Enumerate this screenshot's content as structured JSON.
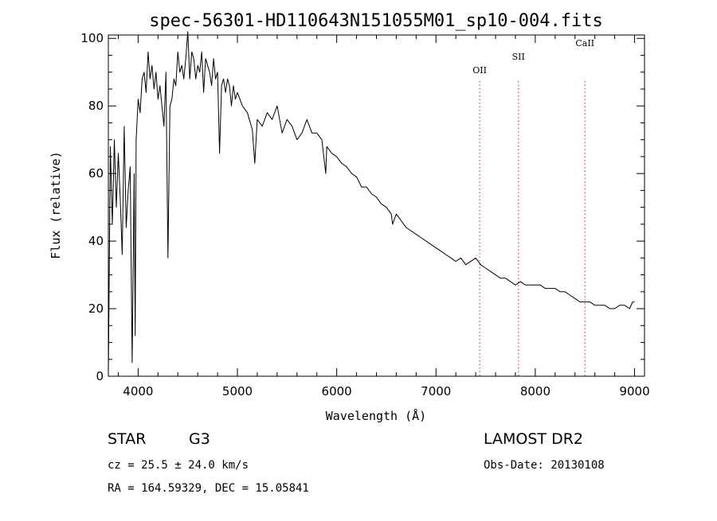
{
  "chart_data": {
    "type": "line",
    "title": "spec-56301-HD110643N151055M01_sp10-004.fits",
    "xlabel": "Wavelength (Å)",
    "ylabel": "Flux (relative)",
    "xlim": [
      3700,
      9100
    ],
    "ylim": [
      0,
      101
    ],
    "x_ticks": [
      4000,
      5000,
      6000,
      7000,
      8000,
      9000
    ],
    "y_ticks": [
      0,
      20,
      40,
      60,
      80,
      100
    ],
    "grid": false,
    "line_color": "#000000",
    "marker_color": "#ff3b3b",
    "spectral_lines": [
      {
        "label": "OII",
        "wavelength": 7440
      },
      {
        "label": "SII",
        "wavelength": 7830
      },
      {
        "label": "CaII",
        "wavelength": 8500
      }
    ],
    "series": [
      {
        "x": [
          3700,
          3720,
          3740,
          3760,
          3780,
          3800,
          3820,
          3840,
          3860,
          3880,
          3900,
          3920,
          3940,
          3960,
          3970,
          3980,
          4000,
          4020,
          4040,
          4060,
          4080,
          4100,
          4120,
          4140,
          4160,
          4180,
          4200,
          4220,
          4240,
          4260,
          4280,
          4300,
          4320,
          4340,
          4360,
          4380,
          4400,
          4420,
          4440,
          4460,
          4480,
          4500,
          4520,
          4540,
          4560,
          4580,
          4600,
          4620,
          4640,
          4660,
          4680,
          4700,
          4720,
          4740,
          4760,
          4780,
          4800,
          4820,
          4840,
          4860,
          4880,
          4900,
          4920,
          4940,
          4960,
          4980,
          5000,
          5050,
          5100,
          5150,
          5175,
          5200,
          5250,
          5300,
          5350,
          5400,
          5450,
          5500,
          5550,
          5600,
          5650,
          5700,
          5750,
          5800,
          5850,
          5890,
          5900,
          5950,
          6000,
          6050,
          6100,
          6150,
          6200,
          6250,
          6300,
          6350,
          6400,
          6450,
          6500,
          6550,
          6563,
          6600,
          6650,
          6700,
          6750,
          6800,
          6850,
          6900,
          6950,
          7000,
          7050,
          7100,
          7150,
          7200,
          7250,
          7300,
          7350,
          7400,
          7450,
          7500,
          7550,
          7600,
          7650,
          7700,
          7750,
          7800,
          7850,
          7900,
          7950,
          8000,
          8050,
          8100,
          8150,
          8200,
          8250,
          8300,
          8350,
          8400,
          8450,
          8500,
          8550,
          8600,
          8650,
          8700,
          8750,
          8800,
          8850,
          8900,
          8950,
          8980,
          9000
        ],
        "y": [
          0,
          68,
          45,
          70,
          50,
          66,
          52,
          36,
          74,
          44,
          55,
          62,
          4,
          60,
          12,
          70,
          82,
          78,
          88,
          90,
          84,
          96,
          88,
          92,
          85,
          90,
          82,
          86,
          80,
          74,
          90,
          35,
          80,
          82,
          88,
          86,
          96,
          90,
          92,
          88,
          94,
          102,
          88,
          96,
          94,
          88,
          92,
          90,
          96,
          84,
          94,
          92,
          90,
          86,
          94,
          88,
          90,
          66,
          86,
          88,
          84,
          88,
          86,
          80,
          86,
          82,
          84,
          80,
          78,
          73,
          63,
          76,
          74,
          78,
          76,
          80,
          72,
          76,
          74,
          70,
          72,
          76,
          72,
          72,
          70,
          60,
          68,
          66,
          65,
          63,
          62,
          60,
          59,
          56,
          56,
          54,
          53,
          51,
          50,
          48,
          45,
          48,
          46,
          44,
          43,
          42,
          41,
          40,
          39,
          38,
          37,
          36,
          35,
          34,
          35,
          33,
          34,
          35,
          33,
          32,
          31,
          30,
          29,
          29,
          28,
          27,
          28,
          27,
          27,
          27,
          27,
          26,
          26,
          26,
          25,
          25,
          24,
          23,
          22,
          22,
          22,
          21,
          21,
          21,
          20,
          20,
          21,
          21,
          20,
          22,
          22
        ]
      }
    ]
  },
  "footer": {
    "object_type": "STAR",
    "subclass": "G3",
    "survey": "LAMOST DR2",
    "cz": "cz = 25.5 ± 24.0 km/s",
    "obs_date": "Obs-Date: 20130108",
    "coords": "RA = 164.59329, DEC =  15.05841"
  }
}
